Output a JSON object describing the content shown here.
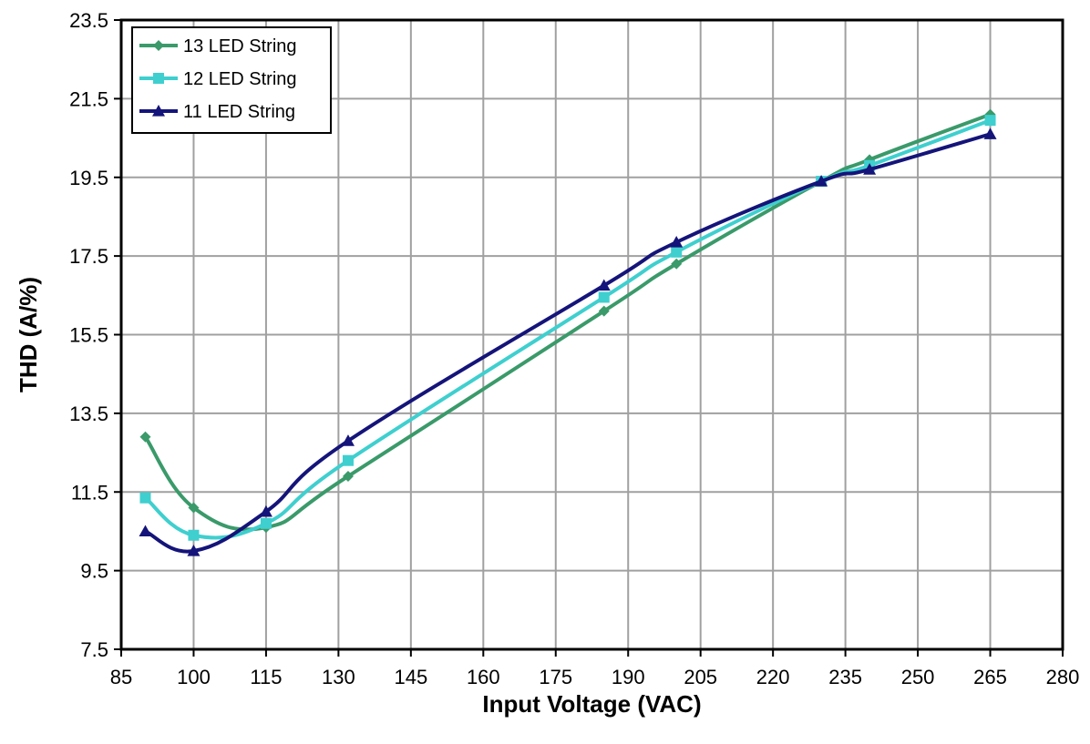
{
  "chart_data": {
    "type": "line",
    "title": "",
    "xlabel": "Input Voltage (VAC)",
    "ylabel": "THD (A/%)",
    "xlim": [
      85,
      280
    ],
    "ylim": [
      7.5,
      23.5
    ],
    "xticks": [
      85,
      100,
      115,
      130,
      145,
      160,
      175,
      190,
      205,
      220,
      235,
      250,
      265,
      280
    ],
    "yticks": [
      7.5,
      9.5,
      11.5,
      13.5,
      15.5,
      17.5,
      19.5,
      21.5,
      23.5
    ],
    "xtick_labels": [
      "85",
      "100",
      "115",
      "130",
      "145",
      "160",
      "175",
      "190",
      "205",
      "220",
      "235",
      "250",
      "265",
      "280"
    ],
    "ytick_labels": [
      "7.5",
      "9.5",
      "11.5",
      "13.5",
      "15.5",
      "17.5",
      "19.5",
      "21.5",
      "23.5"
    ],
    "grid": true,
    "legend_position": "top-left",
    "series": [
      {
        "name": "13 LED String",
        "color": "#3a9a6a",
        "marker": "diamond",
        "x": [
          90,
          100,
          115,
          132,
          185,
          200,
          230,
          240,
          265
        ],
        "y": [
          12.9,
          11.1,
          10.6,
          11.9,
          16.1,
          17.3,
          19.4,
          19.95,
          21.1
        ]
      },
      {
        "name": "12 LED String",
        "color": "#3fcfcf",
        "marker": "square",
        "x": [
          90,
          100,
          115,
          132,
          185,
          200,
          230,
          240,
          265
        ],
        "y": [
          11.35,
          10.4,
          10.7,
          12.3,
          16.45,
          17.6,
          19.4,
          19.8,
          20.95
        ]
      },
      {
        "name": "11 LED String",
        "color": "#14147a",
        "marker": "triangle",
        "x": [
          90,
          100,
          115,
          132,
          185,
          200,
          230,
          240,
          265
        ],
        "y": [
          10.5,
          10.0,
          11.0,
          12.8,
          16.75,
          17.85,
          19.4,
          19.7,
          20.6
        ]
      }
    ]
  }
}
